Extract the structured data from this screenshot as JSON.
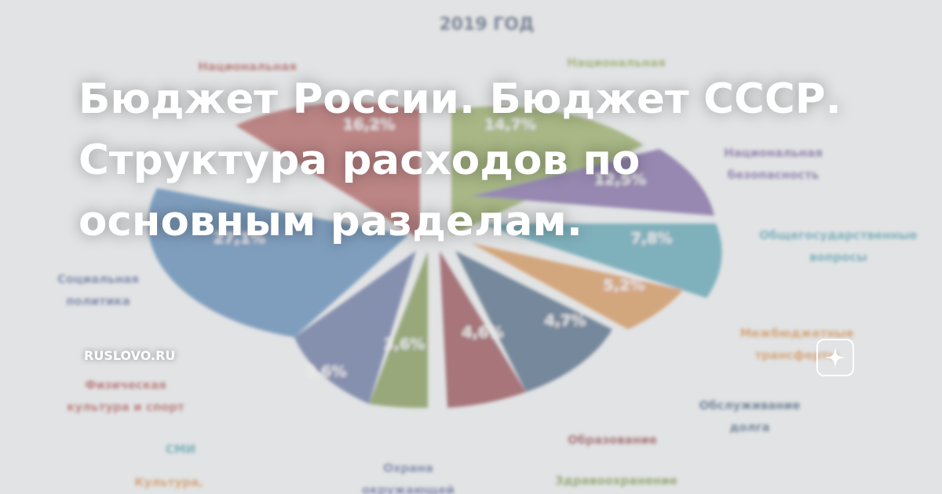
{
  "headline": {
    "lines": [
      "Бюджет России. Бюджет СССР.",
      "Структура расходов по",
      "основным разделам."
    ]
  },
  "source": "RUSLOVO.RU",
  "background": {
    "year": "2019 ГОД",
    "percents": [
      "16,2%",
      "14,7%",
      "12,5%",
      "7,8%",
      "5,2%",
      "4,7%",
      "4,6%",
      "3,6%",
      "3,6%",
      "27,1%"
    ],
    "labels": [
      {
        "lines": [
          "Национальная"
        ]
      },
      {
        "lines": [
          "Национальная"
        ]
      },
      {
        "lines": [
          "Национальная",
          "безопасность"
        ]
      },
      {
        "lines": [
          "Общегосударственные",
          "вопросы"
        ]
      },
      {
        "lines": [
          "Межбюджетные",
          "трансферты"
        ]
      },
      {
        "lines": [
          "Обслуживание",
          "долга"
        ]
      },
      {
        "lines": [
          "Образование"
        ]
      },
      {
        "lines": [
          "Здравоохранение"
        ]
      },
      {
        "lines": [
          "Охрана",
          "окружающей"
        ]
      },
      {
        "lines": [
          "Культура,"
        ]
      },
      {
        "lines": [
          "СМИ"
        ]
      },
      {
        "lines": [
          "Физическая",
          "культура и спорт"
        ]
      },
      {
        "lines": [
          "Социальная",
          "политика"
        ]
      }
    ]
  }
}
